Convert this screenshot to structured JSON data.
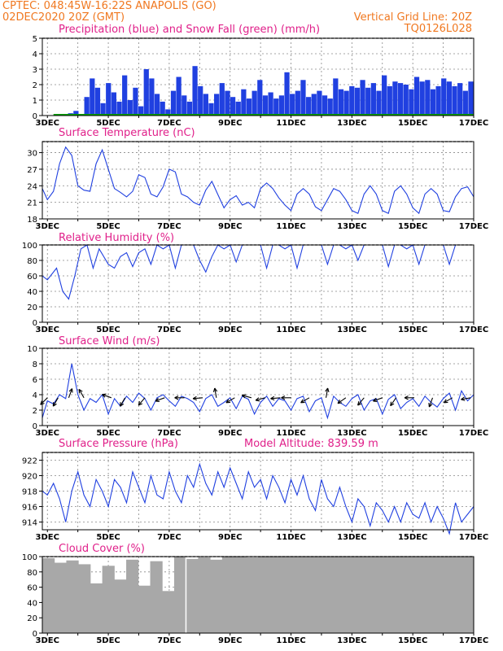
{
  "header": {
    "left1": "CPTEC:   048:45W-16:22S   ANAPOLIS (GO)",
    "left2": "02DEC2020 20Z (GMT)",
    "right1": "Vertical Grid Line: 20Z",
    "right2": "TQ0126L028"
  },
  "colors": {
    "header": "#f07820",
    "title": "#e0208a",
    "series": "#2040e0",
    "snow": "#00a000",
    "cloud": "#a8a8a8"
  },
  "chart_data": [
    {
      "type": "bar",
      "title": "Precipitation (blue) and Snow Fall (green) (mm/h)",
      "ylim": [
        0,
        5
      ],
      "yticks": [
        0,
        1,
        2,
        3,
        4,
        5
      ],
      "xticks": [
        "3DEC",
        "5DEC",
        "7DEC",
        "9DEC",
        "11DEC",
        "13DEC",
        "15DEC",
        "17DEC"
      ],
      "x_range_days": [
        2.833,
        17.0
      ],
      "series": [
        {
          "name": "Precipitation",
          "values": [
            0.05,
            0.15,
            0.3,
            0.1,
            1.2,
            2.4,
            1.8,
            0.8,
            2.1,
            1.5,
            0.9,
            2.6,
            1.0,
            1.8,
            0.6,
            3.0,
            2.4,
            1.4,
            0.9,
            0.4,
            1.6,
            2.5,
            1.3,
            0.9,
            3.2,
            1.9,
            1.4,
            0.8,
            1.4,
            2.1,
            1.6,
            1.2,
            0.9,
            1.7,
            1.1,
            1.6,
            2.3,
            1.3,
            1.5,
            1.1,
            1.3,
            2.8,
            1.4,
            1.6,
            2.3,
            1.2,
            1.4,
            1.6,
            1.3,
            1.1,
            2.4,
            1.7,
            1.6,
            1.9,
            1.8,
            2.3,
            1.8,
            2.1,
            1.6,
            2.6,
            1.9,
            2.2,
            2.1,
            2.0,
            1.7,
            2.5,
            2.2,
            2.3,
            1.7,
            1.9,
            2.4,
            2.2,
            1.9,
            2.1,
            1.6,
            2.2
          ]
        },
        {
          "name": "Snow Fall",
          "values": [
            0,
            0,
            0,
            0,
            0,
            0,
            0,
            0
          ]
        }
      ]
    },
    {
      "type": "line",
      "title": "Surface Temperature (nC)",
      "ylim": [
        18,
        32
      ],
      "yticks": [
        18,
        21,
        24,
        27,
        30
      ],
      "xticks": [
        "3DEC",
        "5DEC",
        "7DEC",
        "9DEC",
        "11DEC",
        "13DEC",
        "15DEC",
        "17DEC"
      ],
      "x": [
        2.833,
        3.0,
        3.2,
        3.4,
        3.6,
        3.8,
        4.0,
        4.2,
        4.4,
        4.6,
        4.8,
        5.0,
        5.2,
        5.4,
        5.6,
        5.8,
        6.0,
        6.2,
        6.4,
        6.6,
        6.8,
        7.0,
        7.2,
        7.4,
        7.6,
        7.8,
        8.0,
        8.2,
        8.4,
        8.6,
        8.8,
        9.0,
        9.2,
        9.4,
        9.6,
        9.8,
        10.0,
        10.2,
        10.4,
        10.6,
        10.8,
        11.0,
        11.2,
        11.4,
        11.6,
        11.8,
        12.0,
        12.2,
        12.4,
        12.6,
        12.8,
        13.0,
        13.2,
        13.4,
        13.6,
        13.8,
        14.0,
        14.2,
        14.4,
        14.6,
        14.8,
        15.0,
        15.2,
        15.4,
        15.6,
        15.8,
        16.0,
        16.2,
        16.4,
        16.6,
        16.8,
        17.0
      ],
      "y": [
        23.5,
        21.5,
        23.0,
        28.0,
        31.0,
        29.5,
        24.0,
        23.2,
        23.0,
        28.0,
        30.5,
        27.0,
        23.5,
        22.8,
        22.0,
        23.0,
        26.0,
        25.5,
        22.5,
        22.0,
        23.8,
        27.0,
        26.5,
        22.5,
        22.0,
        21.0,
        20.5,
        23.2,
        24.8,
        22.4,
        20.0,
        21.5,
        22.2,
        20.5,
        21.0,
        20.0,
        23.5,
        24.5,
        23.5,
        21.8,
        20.5,
        19.5,
        22.5,
        23.5,
        22.5,
        20.2,
        19.5,
        21.5,
        23.5,
        23.0,
        21.5,
        19.5,
        19.0,
        22.5,
        24.0,
        22.5,
        19.5,
        19.0,
        23.0,
        24.0,
        22.5,
        20.0,
        19.0,
        22.5,
        23.5,
        22.5,
        19.5,
        19.3,
        22.0,
        23.5,
        23.8,
        22.0
      ]
    },
    {
      "type": "line",
      "title": "Relative Humidity (%)",
      "ylim": [
        0,
        100
      ],
      "yticks": [
        0,
        20,
        40,
        60,
        80,
        100
      ],
      "xticks": [
        "3DEC",
        "5DEC",
        "7DEC",
        "9DEC",
        "11DEC",
        "13DEC",
        "15DEC",
        "17DEC"
      ],
      "x": [
        2.833,
        3.0,
        3.3,
        3.5,
        3.7,
        3.9,
        4.1,
        4.3,
        4.5,
        4.7,
        5.0,
        5.2,
        5.4,
        5.6,
        5.8,
        6.0,
        6.2,
        6.4,
        6.6,
        6.8,
        7.0,
        7.2,
        7.4,
        7.6,
        7.8,
        8.0,
        8.2,
        8.4,
        8.6,
        8.8,
        9.0,
        9.2,
        9.4,
        9.6,
        9.8,
        10.0,
        10.2,
        10.4,
        10.6,
        10.8,
        11.0,
        11.2,
        11.4,
        11.6,
        11.8,
        12.0,
        12.2,
        12.4,
        12.6,
        12.8,
        13.0,
        13.2,
        13.4,
        13.6,
        13.8,
        14.0,
        14.2,
        14.4,
        14.6,
        14.8,
        15.0,
        15.2,
        15.4,
        15.6,
        15.8,
        16.0,
        16.2,
        16.4,
        16.6,
        16.8,
        17.0
      ],
      "y": [
        60,
        55,
        70,
        40,
        30,
        60,
        95,
        100,
        70,
        95,
        75,
        70,
        85,
        90,
        72,
        90,
        95,
        75,
        100,
        95,
        100,
        70,
        100,
        100,
        100,
        80,
        65,
        85,
        100,
        95,
        100,
        78,
        100,
        100,
        100,
        100,
        70,
        100,
        100,
        95,
        100,
        70,
        100,
        100,
        100,
        100,
        75,
        100,
        100,
        95,
        100,
        80,
        100,
        100,
        100,
        100,
        72,
        100,
        100,
        95,
        100,
        75,
        100,
        100,
        100,
        100,
        75,
        100,
        100,
        100,
        100
      ]
    },
    {
      "type": "line",
      "title": "Surface Wind (m/s)",
      "ylim": [
        0,
        10
      ],
      "yticks": [
        0,
        2,
        4,
        6,
        8,
        10
      ],
      "xticks": [
        "3DEC",
        "5DEC",
        "7DEC",
        "9DEC",
        "11DEC",
        "13DEC",
        "15DEC",
        "17DEC"
      ],
      "x": [
        2.833,
        3.0,
        3.2,
        3.4,
        3.6,
        3.8,
        4.0,
        4.2,
        4.4,
        4.6,
        4.8,
        5.0,
        5.2,
        5.4,
        5.6,
        5.8,
        6.0,
        6.2,
        6.4,
        6.6,
        6.8,
        7.0,
        7.2,
        7.4,
        7.6,
        7.8,
        8.0,
        8.2,
        8.4,
        8.6,
        8.8,
        9.0,
        9.2,
        9.4,
        9.6,
        9.8,
        10.0,
        10.2,
        10.4,
        10.6,
        10.8,
        11.0,
        11.2,
        11.4,
        11.6,
        11.8,
        12.0,
        12.2,
        12.4,
        12.6,
        12.8,
        13.0,
        13.2,
        13.4,
        13.6,
        13.8,
        14.0,
        14.2,
        14.4,
        14.6,
        14.8,
        15.0,
        15.2,
        15.4,
        15.6,
        15.8,
        16.0,
        16.2,
        16.4,
        16.6,
        16.8,
        17.0
      ],
      "y": [
        1.0,
        3.2,
        2.8,
        4.0,
        3.5,
        8.0,
        4.0,
        2.0,
        3.5,
        3.0,
        4.0,
        1.5,
        3.5,
        2.5,
        3.8,
        3.0,
        4.2,
        3.5,
        2.0,
        3.6,
        4.0,
        3.2,
        2.5,
        3.8,
        3.5,
        3.0,
        1.8,
        3.5,
        4.0,
        2.5,
        3.0,
        3.6,
        2.2,
        3.8,
        3.4,
        1.5,
        3.0,
        3.8,
        2.5,
        3.5,
        3.2,
        2.0,
        3.5,
        3.8,
        1.8,
        3.2,
        3.6,
        1.0,
        3.8,
        3.0,
        2.5,
        3.5,
        4.0,
        2.0,
        3.2,
        3.5,
        1.5,
        3.4,
        4.0,
        2.2,
        3.0,
        3.5,
        2.5,
        3.8,
        3.0,
        2.4,
        3.5,
        4.2,
        2.0,
        4.5,
        3.2,
        4.0
      ],
      "arrow_days": [
        3.0,
        3.35,
        3.7,
        4.2,
        5.1,
        5.55,
        6.2,
        6.85,
        7.5,
        8.1,
        8.55,
        9.15,
        9.7,
        10.15,
        10.65,
        11.0,
        11.6,
        12.15,
        12.8,
        13.4,
        14.0,
        14.45,
        15.05,
        15.65,
        16.3,
        16.9
      ],
      "arrow_angles_deg": [
        225,
        240,
        70,
        120,
        160,
        240,
        230,
        200,
        180,
        185,
        100,
        210,
        165,
        195,
        185,
        180,
        210,
        80,
        215,
        230,
        200,
        235,
        180,
        250,
        210,
        190
      ]
    },
    {
      "type": "line",
      "title": "Surface Pressure (hPa)",
      "annotation": "Model Altitude: 839.59 m",
      "ylim": [
        913,
        923
      ],
      "yticks": [
        914,
        916,
        918,
        920,
        922
      ],
      "xticks": [
        "3DEC",
        "5DEC",
        "7DEC",
        "9DEC",
        "11DEC",
        "13DEC",
        "15DEC",
        "17DEC"
      ],
      "x": [
        2.833,
        3.0,
        3.2,
        3.4,
        3.6,
        3.8,
        4.0,
        4.2,
        4.4,
        4.6,
        4.8,
        5.0,
        5.2,
        5.4,
        5.6,
        5.8,
        6.0,
        6.2,
        6.4,
        6.6,
        6.8,
        7.0,
        7.2,
        7.4,
        7.6,
        7.8,
        8.0,
        8.2,
        8.4,
        8.6,
        8.8,
        9.0,
        9.2,
        9.4,
        9.6,
        9.8,
        10.0,
        10.2,
        10.4,
        10.6,
        10.8,
        11.0,
        11.2,
        11.4,
        11.6,
        11.8,
        12.0,
        12.2,
        12.4,
        12.6,
        12.8,
        13.0,
        13.2,
        13.4,
        13.6,
        13.8,
        14.0,
        14.2,
        14.4,
        14.6,
        14.8,
        15.0,
        15.2,
        15.4,
        15.6,
        15.8,
        16.0,
        16.2,
        16.4,
        16.6,
        16.8,
        17.0
      ],
      "y": [
        918.0,
        917.5,
        919.0,
        917.0,
        914.0,
        918.0,
        920.5,
        917.5,
        916.0,
        919.5,
        918.0,
        916.0,
        919.5,
        918.5,
        916.5,
        920.5,
        918.5,
        916.5,
        920.0,
        917.5,
        917.0,
        920.5,
        918.0,
        916.5,
        920.0,
        918.5,
        921.5,
        919.0,
        917.5,
        920.5,
        918.5,
        921.0,
        919.0,
        917.0,
        920.5,
        918.5,
        919.5,
        917.0,
        920.0,
        918.5,
        916.5,
        919.5,
        917.5,
        920.0,
        917.0,
        915.5,
        919.5,
        917.0,
        916.0,
        918.5,
        916.0,
        914.0,
        917.0,
        916.0,
        913.5,
        916.5,
        915.5,
        914.0,
        916.0,
        914.0,
        916.5,
        915.0,
        914.5,
        916.5,
        914.0,
        916.0,
        914.5,
        912.5,
        916.5,
        914.0,
        915.0,
        916.0
      ]
    },
    {
      "type": "bar",
      "title": "Cloud Cover (%)",
      "ylim": [
        0,
        100
      ],
      "yticks": [
        0,
        20,
        40,
        60,
        80,
        100
      ],
      "xticks": [
        "3DEC",
        "5DEC",
        "7DEC",
        "9DEC",
        "11DEC",
        "13DEC",
        "15DEC",
        "17DEC"
      ],
      "x_range_days": [
        2.833,
        17.0
      ],
      "values": [
        98,
        92,
        95,
        90,
        65,
        88,
        70,
        96,
        62,
        94,
        55,
        100,
        97,
        99,
        96,
        100,
        100,
        99,
        100,
        100,
        100,
        100,
        100,
        100,
        100,
        100,
        100,
        100,
        100,
        100,
        100,
        100,
        100,
        100,
        100,
        100
      ],
      "gap_day": 7.55
    }
  ]
}
